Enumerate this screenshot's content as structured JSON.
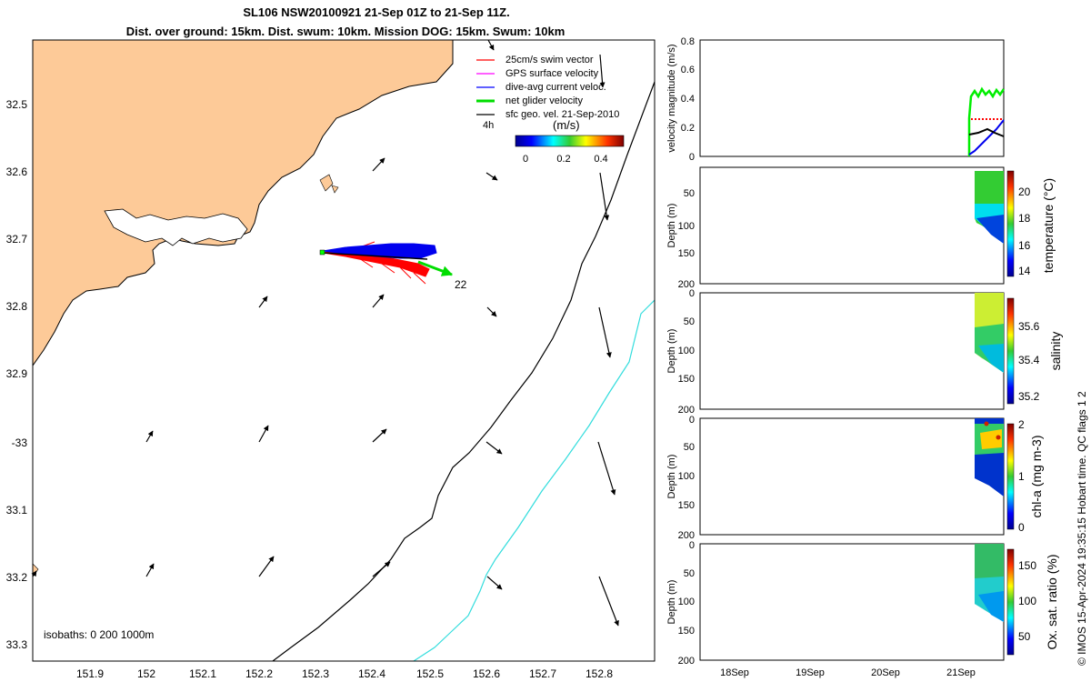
{
  "title": {
    "line1": "SL106 NSW20100921 21-Sep 01Z to 21-Sep 11Z.",
    "line2": "Dist. over ground: 15km. Dist. swum: 10km. Mission DOG: 15km. Swum: 10km"
  },
  "map": {
    "legend": [
      {
        "label": "25cm/s swim vector",
        "color": "#ff0000"
      },
      {
        "label": "GPS surface velocity",
        "color": "#ff00ff"
      },
      {
        "label": "dive-avg current veloc.",
        "color": "#0000ff"
      },
      {
        "label": "net glider velocity",
        "color": "#00dd00"
      },
      {
        "label": "sfc geo. vel. 21-Sep-2010",
        "color": "#000000"
      }
    ],
    "colorbar": {
      "label": "(m/s)",
      "ticks": [
        "0",
        "0.2",
        "0.4"
      ],
      "left_note": "4h"
    },
    "lon_ticks": [
      "151.9",
      "152",
      "152.1",
      "152.2",
      "152.3",
      "152.4",
      "152.5",
      "152.6",
      "152.7",
      "152.8"
    ],
    "lat_ticks": [
      "32.5",
      "32.6",
      "32.7",
      "32.8",
      "32.9",
      "-33",
      "33.1",
      "33.2",
      "33.3"
    ],
    "isobaths_label": "isobaths: 0   200  1000m",
    "end_label": "22",
    "land_color": "#fdca98",
    "isobath_colors": {
      "200m": "#000000",
      "1000m": "#33dddd"
    }
  },
  "panels": {
    "velocity": {
      "ylabel": "velocity magnitude (m/s)",
      "yticks": [
        "0",
        "0.2",
        "0.4",
        "0.6",
        "0.8"
      ]
    },
    "depth_ticks": [
      "0",
      "50",
      "100",
      "150",
      "200"
    ],
    "depth_ylabel": "Depth (m)",
    "xticks": [
      "18Sep",
      "19Sep",
      "20Sep",
      "21Sep"
    ],
    "temperature": {
      "label": "temperature (°C)",
      "ticks": [
        "14",
        "16",
        "18",
        "20"
      ]
    },
    "salinity": {
      "label": "salinity",
      "ticks": [
        "35.2",
        "35.4",
        "35.6"
      ]
    },
    "chla": {
      "label": "chl-a (mg m-3)",
      "ticks": [
        "0",
        "1",
        "2"
      ]
    },
    "oxygen": {
      "label": "Ox. sat. ratio (%)",
      "ticks": [
        "50",
        "100",
        "150"
      ]
    }
  },
  "copyright": "© IMOS 15-Apr-2024 19:35:15 Hobart time. QC flags 1  2"
}
